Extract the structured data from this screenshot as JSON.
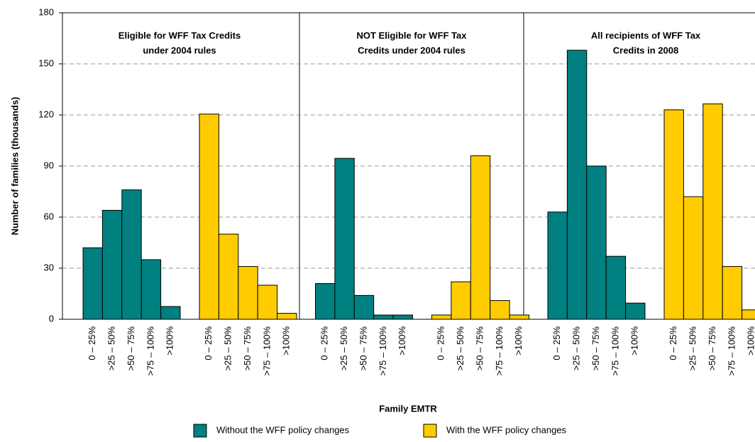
{
  "chart_data": {
    "type": "bar",
    "ylabel": "Number of families (thousands)",
    "xlabel": "Family EMTR",
    "ylim": [
      0,
      180
    ],
    "yticks": [
      0,
      30,
      60,
      90,
      120,
      150,
      180
    ],
    "grid": true,
    "categories": [
      "0 – 25%",
      ">25 – 50%",
      ">50 – 75%",
      ">75 – 100%",
      ">100%"
    ],
    "panels": [
      {
        "title": [
          "Eligible for WFF Tax Credits",
          "under 2004 rules"
        ]
      },
      {
        "title": [
          "NOT Eligible for WFF Tax",
          "Credits under 2004 rules"
        ]
      },
      {
        "title": [
          "All recipients of WFF Tax",
          "Credits in 2008"
        ]
      }
    ],
    "series": [
      {
        "name": "Without the WFF policy changes",
        "color": "#008080",
        "values": [
          [
            42,
            64,
            76,
            35,
            7.5
          ],
          [
            21,
            94.5,
            14,
            2.5,
            2.5
          ],
          [
            63,
            158,
            90,
            37,
            9.5
          ]
        ]
      },
      {
        "name": "With the WFF policy changes",
        "color": "#ffcc00",
        "values": [
          [
            120.5,
            50,
            31,
            20,
            3.5
          ],
          [
            2.5,
            22,
            96,
            11,
            2.5
          ],
          [
            123,
            72,
            126.5,
            31,
            5.5
          ]
        ]
      }
    ]
  }
}
